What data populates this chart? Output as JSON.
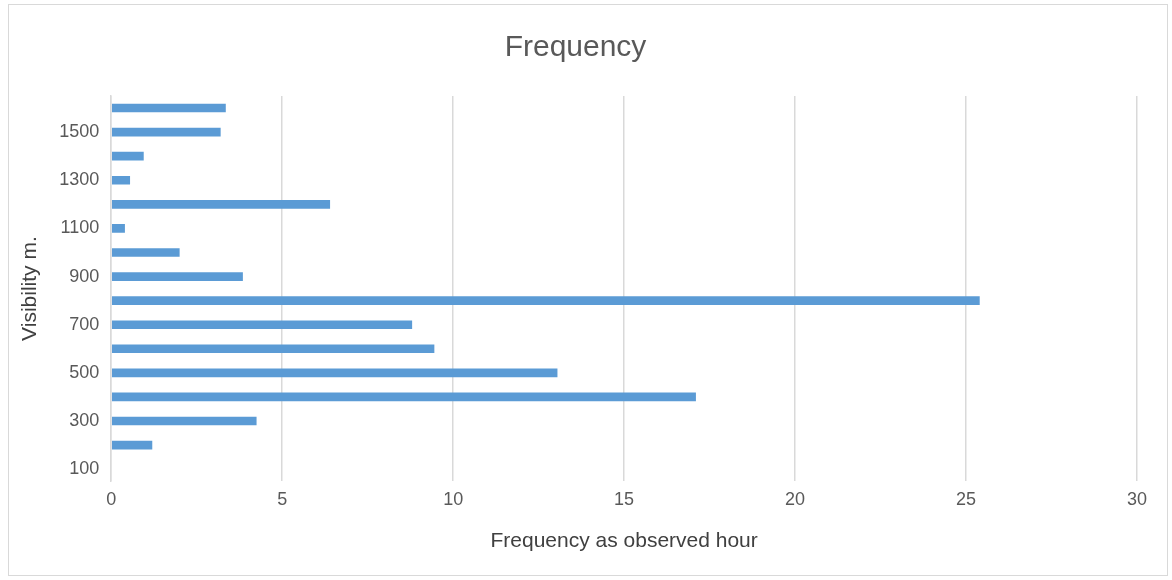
{
  "chart_data": {
    "type": "bar",
    "orientation": "horizontal",
    "title": "Frequency",
    "xlabel": "Frequency as observed hour",
    "ylabel": "Visibility m.",
    "categories": [
      null,
      "1500",
      null,
      "1300",
      null,
      "1100",
      null,
      "900",
      null,
      "700",
      null,
      "500",
      null,
      "300",
      null,
      "100"
    ],
    "values": [
      3.35,
      3.2,
      0.95,
      0.55,
      6.4,
      0.4,
      2.0,
      3.85,
      25.4,
      8.8,
      9.45,
      13.05,
      17.1,
      4.25,
      1.2,
      0
    ],
    "color": "#5b9bd5",
    "xlim": [
      0,
      30
    ],
    "xticks": [
      0,
      5,
      10,
      15,
      20,
      25,
      30
    ],
    "grid": "x",
    "legend": false
  }
}
